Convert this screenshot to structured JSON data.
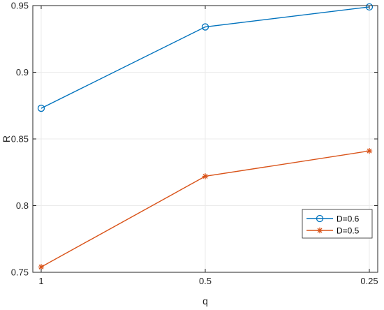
{
  "chart_data": {
    "type": "line",
    "x": [
      "1",
      "0.5",
      "0.25"
    ],
    "xlabel": "q",
    "ylabel": "R",
    "ylim": [
      0.75,
      0.95
    ],
    "yticks": [
      "0.75",
      "0.8",
      "0.85",
      "0.9",
      "0.95"
    ],
    "grid": true,
    "legend_position": "lower-right",
    "series": [
      {
        "name": "D=0.6",
        "values": [
          0.873,
          0.934,
          0.949
        ],
        "color": "#0072BD",
        "marker": "circle"
      },
      {
        "name": "D=0.5",
        "values": [
          0.754,
          0.822,
          0.841
        ],
        "color": "#D95319",
        "marker": "asterisk"
      }
    ]
  }
}
